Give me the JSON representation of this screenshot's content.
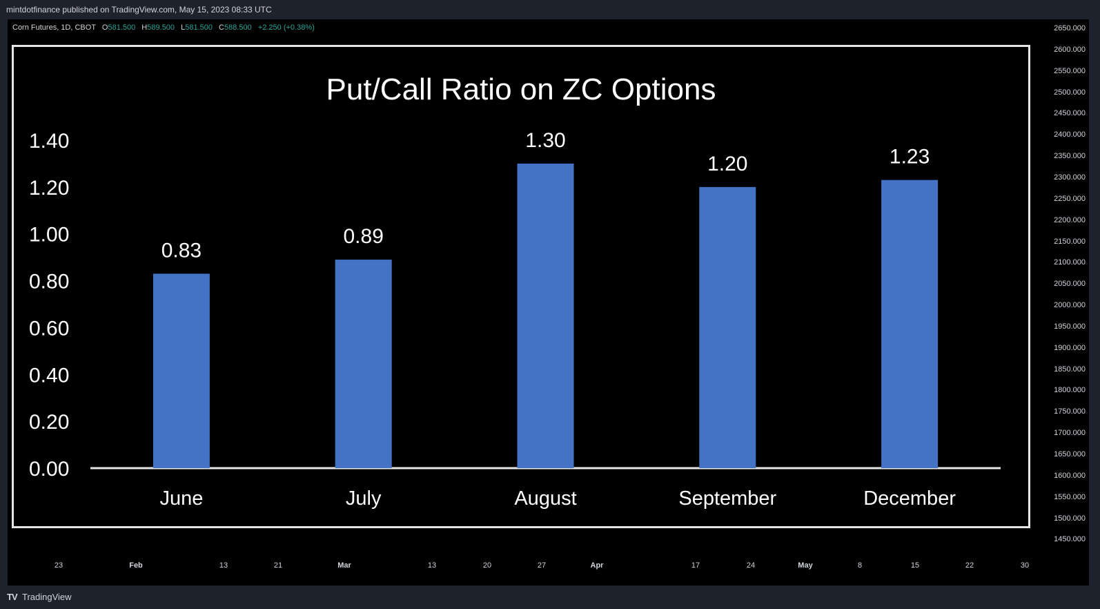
{
  "header": {
    "attribution": "mintdotfinance published on TradingView.com, May 15, 2023 08:33 UTC"
  },
  "legend": {
    "symbol": "Corn Futures, 1D, CBOT",
    "open_label": "O",
    "open": "581.500",
    "high_label": "H",
    "high": "589.500",
    "low_label": "L",
    "low": "581.500",
    "close_label": "C",
    "close": "588.500",
    "change": "+2.250 (+0.38%)"
  },
  "price_axis": [
    "2650.000",
    "2600.000",
    "2550.000",
    "2500.000",
    "2450.000",
    "2400.000",
    "2350.000",
    "2300.000",
    "2250.000",
    "2200.000",
    "2150.000",
    "2100.000",
    "2050.000",
    "2000.000",
    "1950.000",
    "1900.000",
    "1850.000",
    "1800.000",
    "1750.000",
    "1700.000",
    "1650.000",
    "1600.000",
    "1550.000",
    "1500.000",
    "1450.000"
  ],
  "time_axis": [
    {
      "label": "23",
      "month": false
    },
    {
      "label": "Feb",
      "month": true
    },
    {
      "label": "13",
      "month": false
    },
    {
      "label": "21",
      "month": false
    },
    {
      "label": "Mar",
      "month": true
    },
    {
      "label": "13",
      "month": false
    },
    {
      "label": "20",
      "month": false
    },
    {
      "label": "27",
      "month": false
    },
    {
      "label": "Apr",
      "month": true
    },
    {
      "label": "17",
      "month": false
    },
    {
      "label": "24",
      "month": false
    },
    {
      "label": "May",
      "month": true
    },
    {
      "label": "8",
      "month": false
    },
    {
      "label": "15",
      "month": false
    },
    {
      "label": "22",
      "month": false
    },
    {
      "label": "30",
      "month": false
    }
  ],
  "chart_data": {
    "type": "bar",
    "title": "Put/Call Ratio on ZC Options",
    "categories": [
      "June",
      "July",
      "August",
      "September",
      "December"
    ],
    "values": [
      0.83,
      0.89,
      1.3,
      1.2,
      1.23
    ],
    "value_labels": [
      "0.83",
      "0.89",
      "1.30",
      "1.20",
      "1.23"
    ],
    "ylim": [
      0,
      1.4
    ],
    "yticks": [
      "0.00",
      "0.20",
      "0.40",
      "0.60",
      "0.80",
      "1.00",
      "1.20",
      "1.40"
    ],
    "bar_color": "#4472c4",
    "grid": false
  },
  "footer": {
    "logo": "TV",
    "brand": "TradingView"
  }
}
